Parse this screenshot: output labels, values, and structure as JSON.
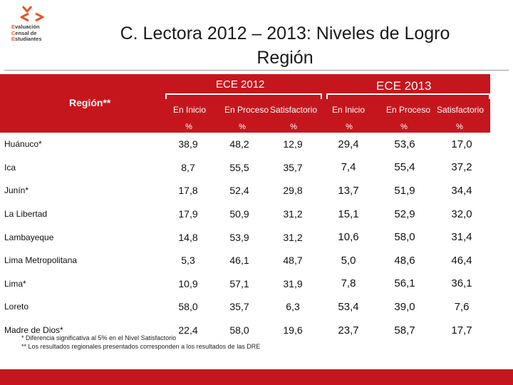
{
  "logo": {
    "lines": [
      [
        "E",
        "valuación"
      ],
      [
        "C",
        "ensal de"
      ],
      [
        "E",
        "studiantes"
      ]
    ]
  },
  "title": {
    "line1": "C. Lectora 2012 – 2013: Niveles de Logro",
    "line2": "Región"
  },
  "header": {
    "region_label": "Región**",
    "year1": "ECE 2012",
    "year2": "ECE 2013",
    "columns": [
      "En Inicio",
      "En Proceso",
      "Satisfactorio",
      "En Inicio",
      "En Proceso",
      "Satisfactorio"
    ],
    "unit": "%"
  },
  "rows": [
    {
      "region": "Huánuco*",
      "values": [
        "38,9",
        "48,2",
        "12,9",
        "29,4",
        "53,6",
        "17,0"
      ]
    },
    {
      "region": "Ica",
      "values": [
        "8,7",
        "55,5",
        "35,7",
        "7,4",
        "55,4",
        "37,2"
      ]
    },
    {
      "region": "Junín*",
      "values": [
        "17,8",
        "52,4",
        "29,8",
        "13,7",
        "51,9",
        "34,4"
      ]
    },
    {
      "region": "La Libertad",
      "values": [
        "17,9",
        "50,9",
        "31,2",
        "15,1",
        "52,9",
        "32,0"
      ]
    },
    {
      "region": "Lambayeque",
      "values": [
        "14,8",
        "53,9",
        "31,2",
        "10,6",
        "58,0",
        "31,4"
      ]
    },
    {
      "region": "Lima Metropolitana",
      "values": [
        "5,3",
        "46,1",
        "48,7",
        "5,0",
        "48,6",
        "46,4"
      ]
    },
    {
      "region": "Lima*",
      "values": [
        "10,9",
        "57,1",
        "31,9",
        "7,8",
        "56,1",
        "36,1"
      ]
    },
    {
      "region": "Loreto",
      "values": [
        "58,0",
        "35,7",
        "6,3",
        "53,4",
        "39,0",
        "7,6"
      ]
    },
    {
      "region": "Madre de Dios*",
      "values": [
        "22,4",
        "58,0",
        "19,6",
        "23,7",
        "58,7",
        "17,7"
      ]
    }
  ],
  "footnotes": [
    "* Diferencia significativa al 5% en el Nivel Satisfactorio",
    "** Los resultados regionales presentados corresponden a los resultados de las DRE"
  ],
  "colors": {
    "accent": "#c6161d",
    "logo_orange": "#e0592a",
    "logo_text": "#3a3a3a"
  }
}
